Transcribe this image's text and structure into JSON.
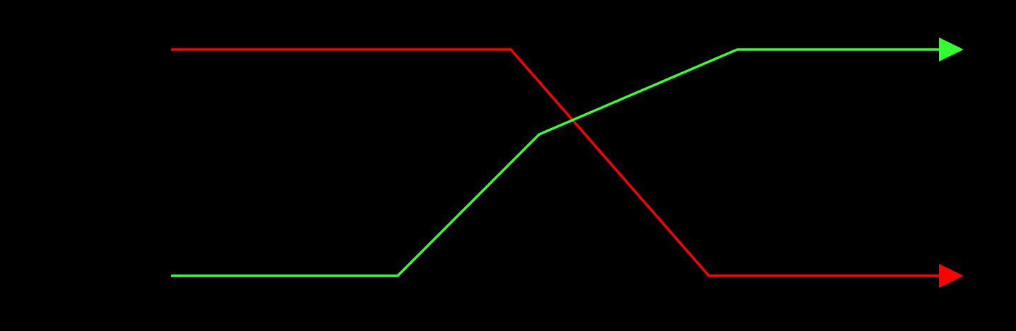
{
  "diagram": {
    "background_color": "#000000",
    "paths": [
      {
        "id": "red",
        "color": "#ff0000",
        "start_level": "high",
        "end_level": "low"
      },
      {
        "id": "green",
        "color": "#33ff33",
        "start_level": "low",
        "end_level": "high"
      }
    ],
    "arrowheads": [
      {
        "path": "red",
        "color": "#ff0000",
        "direction": "right"
      },
      {
        "path": "green",
        "color": "#33ff33",
        "direction": "right"
      }
    ]
  }
}
